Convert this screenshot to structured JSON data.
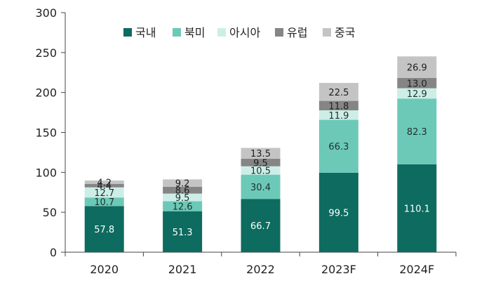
{
  "chart_data": {
    "type": "bar",
    "stacked": true,
    "categories": [
      "2020",
      "2021",
      "2022",
      "2023F",
      "2024F"
    ],
    "series": [
      {
        "name": "국내",
        "color": "#0d6b5f",
        "label_color": "#ffffff",
        "values": [
          57.8,
          51.3,
          66.7,
          99.5,
          110.1
        ]
      },
      {
        "name": "북미",
        "color": "#6cc9b8",
        "label_color": "#1f2f2c",
        "values": [
          10.7,
          12.6,
          30.4,
          66.3,
          82.3
        ]
      },
      {
        "name": "아시아",
        "color": "#cdeee7",
        "label_color": "#1f2f2c",
        "values": [
          12.7,
          9.5,
          10.5,
          11.9,
          12.9
        ]
      },
      {
        "name": "유럽",
        "color": "#858585",
        "label_color": "#1f1f1f",
        "values": [
          4.4,
          8.6,
          9.5,
          11.8,
          13.0
        ]
      },
      {
        "name": "중국",
        "color": "#c4c4c4",
        "label_color": "#1f1f1f",
        "values": [
          4.2,
          9.2,
          13.5,
          22.5,
          26.9
        ]
      }
    ],
    "value_labels": [
      [
        "57.8",
        "51.3",
        "66.7",
        "99.5",
        "110.1"
      ],
      [
        "10.7",
        "12.6",
        "30.4",
        "66.3",
        "82.3"
      ],
      [
        "12.7",
        "9.5",
        "10.5",
        "11.9",
        "12.9"
      ],
      [
        "4.4",
        "8.6",
        "9.5",
        "11.8",
        "13.0"
      ],
      [
        "4.2",
        "9.2",
        "13.5",
        "22.5",
        "26.9"
      ]
    ],
    "y_ticks": [
      "0",
      "50",
      "100",
      "150",
      "200",
      "250",
      "300"
    ],
    "ylim": [
      0,
      300
    ],
    "grid": false,
    "legend_position": "top-center"
  }
}
